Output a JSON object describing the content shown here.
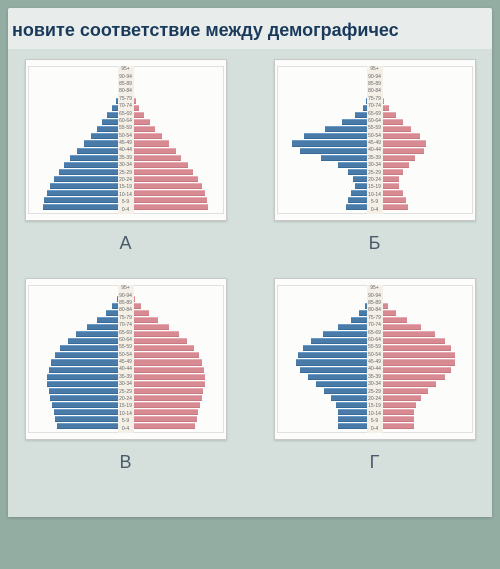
{
  "title": "новите соответствие между демографичес",
  "colors": {
    "male": "#4a7aa8",
    "female": "#d88a92",
    "page_bg": "#e8ecea",
    "content_bg": "#d5e0dc",
    "outer_bg": "#94ada3",
    "title_color": "#1a3a5c",
    "label_color": "#4a5a6a",
    "frame_bg": "#fcfcfa"
  },
  "age_bands": [
    "95+",
    "90-94",
    "85-89",
    "80-84",
    "75-79",
    "70-74",
    "65-69",
    "60-64",
    "55-59",
    "50-54",
    "45-49",
    "40-44",
    "35-39",
    "30-34",
    "25-29",
    "20-24",
    "15-19",
    "10-14",
    "5-9",
    "0-4"
  ],
  "pyramids": [
    {
      "id": "A",
      "label": "А",
      "type": "population-pyramid",
      "shape_note": "classic expansive pyramid",
      "male": [
        1,
        2,
        3,
        5,
        8,
        12,
        18,
        24,
        30,
        38,
        46,
        54,
        62,
        70,
        76,
        82,
        86,
        90,
        93,
        95
      ],
      "female": [
        1,
        2,
        3,
        5,
        9,
        13,
        19,
        25,
        32,
        40,
        48,
        56,
        63,
        71,
        77,
        83,
        87,
        91,
        94,
        95
      ],
      "x_max": 100
    },
    {
      "id": "B",
      "label": "Б",
      "type": "population-pyramid",
      "shape_note": "irregular / war-affected, bulge in middle ages, narrow young",
      "male": [
        1,
        2,
        3,
        4,
        6,
        10,
        20,
        35,
        55,
        80,
        95,
        85,
        60,
        40,
        28,
        22,
        20,
        24,
        28,
        30
      ],
      "female": [
        1,
        2,
        3,
        5,
        8,
        14,
        22,
        30,
        40,
        50,
        58,
        55,
        45,
        38,
        30,
        26,
        25,
        30,
        34,
        36
      ],
      "x_max": 100
    },
    {
      "id": "V",
      "label": "В",
      "type": "population-pyramid",
      "shape_note": "stationary / barrel-shaped, slight taper",
      "male": [
        3,
        6,
        12,
        20,
        30,
        42,
        55,
        65,
        74,
        80,
        85,
        88,
        90,
        90,
        88,
        86,
        84,
        82,
        80,
        78
      ],
      "female": [
        4,
        8,
        15,
        24,
        35,
        48,
        60,
        70,
        78,
        84,
        88,
        90,
        91,
        91,
        89,
        87,
        85,
        83,
        81,
        79
      ],
      "x_max": 100
    },
    {
      "id": "G",
      "label": "Г",
      "type": "population-pyramid",
      "shape_note": "constrictive / aging, bulge upper-middle, narrow base",
      "male": [
        2,
        4,
        8,
        15,
        25,
        40,
        58,
        72,
        82,
        88,
        90,
        85,
        76,
        66,
        56,
        48,
        42,
        40,
        40,
        40
      ],
      "female": [
        3,
        6,
        12,
        22,
        35,
        52,
        68,
        80,
        88,
        92,
        92,
        88,
        80,
        70,
        60,
        52,
        46,
        44,
        44,
        44
      ],
      "x_max": 100
    }
  ]
}
